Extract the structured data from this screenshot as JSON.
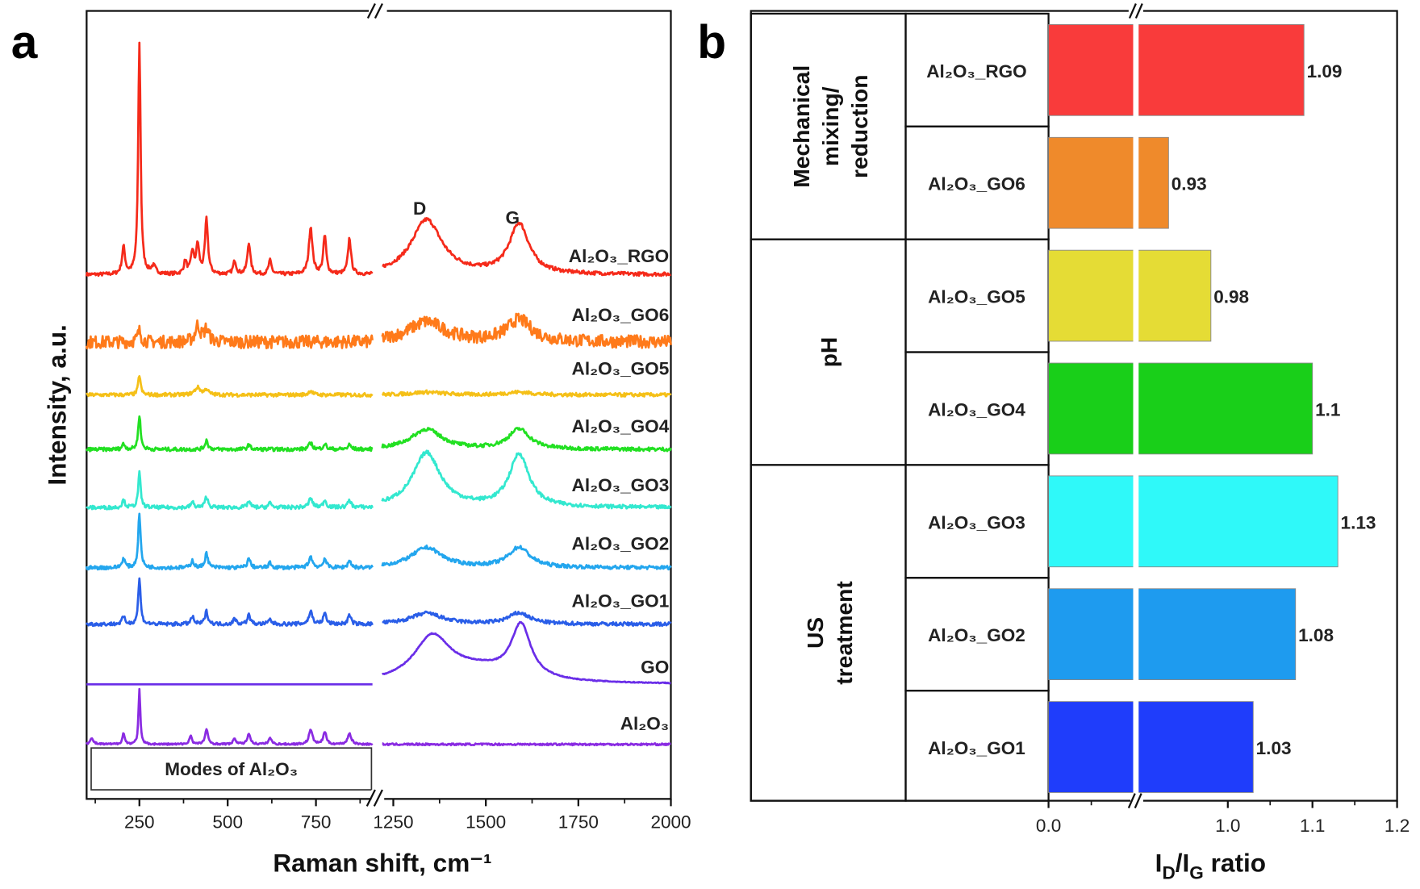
{
  "chart_data": [
    {
      "panel": "a",
      "type": "line",
      "xlabel": "Raman shift, cm⁻¹",
      "ylabel": "Intensity, a.u.",
      "x_segments": [
        [
          100,
          910
        ],
        [
          1220,
          2000
        ]
      ],
      "x_ticks": [
        "250",
        "500",
        "750",
        "1250",
        "1500",
        "1750",
        "2000"
      ],
      "x_tick_values": [
        250,
        500,
        750,
        1250,
        1500,
        1750,
        2000
      ],
      "axis_break": true,
      "grid": false,
      "peak_labels": [
        {
          "text": "D",
          "x": 1340
        },
        {
          "text": "G",
          "x": 1590
        }
      ],
      "box_label": "Modes of Al₂O₃",
      "peak_model": "position cm-1, relative intensity, half-width cm-1",
      "series": [
        {
          "name": "Al₂O₃_RGO",
          "color": "#f52a1a",
          "noise": 2,
          "peaks": [
            [
              205,
              30,
              5
            ],
            [
              250,
              255,
              4
            ],
            [
              290,
              8,
              8
            ],
            [
              380,
              14,
              5
            ],
            [
              400,
              24,
              5
            ],
            [
              415,
              32,
              5
            ],
            [
              440,
              60,
              5
            ],
            [
              520,
              15,
              5
            ],
            [
              560,
              35,
              5
            ],
            [
              620,
              15,
              5
            ],
            [
              735,
              52,
              6
            ],
            [
              775,
              42,
              5
            ],
            [
              845,
              40,
              5
            ],
            [
              1340,
              60,
              50
            ],
            [
              1590,
              55,
              32
            ]
          ]
        },
        {
          "name": "Al₂O₃_GO6",
          "color": "#ff7a1a",
          "noise": 7,
          "peaks": [
            [
              250,
              12,
              6
            ],
            [
              415,
              18,
              8
            ],
            [
              440,
              14,
              8
            ],
            [
              1340,
              22,
              60
            ],
            [
              1590,
              24,
              40
            ]
          ]
        },
        {
          "name": "Al₂O₃_GO5",
          "color": "#f5c018",
          "noise": 2,
          "peaks": [
            [
              250,
              22,
              4
            ],
            [
              415,
              8,
              10
            ],
            [
              440,
              6,
              6
            ],
            [
              735,
              5,
              6
            ],
            [
              1340,
              3,
              50
            ],
            [
              1590,
              3,
              40
            ]
          ]
        },
        {
          "name": "Al₂O₃_GO4",
          "color": "#22e022",
          "noise": 2,
          "peaks": [
            [
              205,
              6,
              5
            ],
            [
              250,
              38,
              4
            ],
            [
              440,
              10,
              5
            ],
            [
              560,
              5,
              5
            ],
            [
              735,
              7,
              6
            ],
            [
              775,
              6,
              5
            ],
            [
              845,
              5,
              5
            ],
            [
              1340,
              22,
              50
            ],
            [
              1590,
              22,
              35
            ]
          ]
        },
        {
          "name": "Al₂O₃_GO3",
          "color": "#33e8cf",
          "noise": 2,
          "peaks": [
            [
              205,
              8,
              5
            ],
            [
              250,
              38,
              4
            ],
            [
              400,
              6,
              5
            ],
            [
              440,
              12,
              5
            ],
            [
              560,
              7,
              5
            ],
            [
              620,
              5,
              5
            ],
            [
              735,
              10,
              6
            ],
            [
              775,
              8,
              5
            ],
            [
              845,
              8,
              5
            ],
            [
              1340,
              60,
              45
            ],
            [
              1590,
              58,
              32
            ]
          ]
        },
        {
          "name": "Al₂O₃_GO2",
          "color": "#23a6ee",
          "noise": 2,
          "peaks": [
            [
              205,
              10,
              5
            ],
            [
              250,
              60,
              4
            ],
            [
              400,
              8,
              5
            ],
            [
              440,
              16,
              5
            ],
            [
              560,
              10,
              5
            ],
            [
              620,
              5,
              5
            ],
            [
              735,
              12,
              6
            ],
            [
              775,
              10,
              5
            ],
            [
              845,
              8,
              5
            ],
            [
              1340,
              22,
              50
            ],
            [
              1590,
              22,
              35
            ]
          ]
        },
        {
          "name": "Al₂O₃_GO1",
          "color": "#2a5ee8",
          "noise": 2,
          "peaks": [
            [
              205,
              8,
              5
            ],
            [
              250,
              50,
              4
            ],
            [
              400,
              8,
              5
            ],
            [
              440,
              14,
              5
            ],
            [
              520,
              6,
              5
            ],
            [
              560,
              10,
              5
            ],
            [
              620,
              5,
              5
            ],
            [
              735,
              14,
              6
            ],
            [
              775,
              12,
              5
            ],
            [
              845,
              10,
              5
            ],
            [
              1340,
              12,
              50
            ],
            [
              1590,
              12,
              35
            ]
          ]
        },
        {
          "name": "GO",
          "color": "#6a2ee8",
          "noise": 0.5,
          "peaks": [
            [
              1355,
              48,
              60
            ],
            [
              1595,
              58,
              32
            ],
            [
              1480,
              14,
              120
            ]
          ]
        },
        {
          "name": "Al₂O₃",
          "color": "#8a2be2",
          "noise": 1,
          "peaks": [
            [
              115,
              6,
              6
            ],
            [
              205,
              12,
              4
            ],
            [
              250,
              60,
              3
            ],
            [
              395,
              10,
              4
            ],
            [
              440,
              16,
              5
            ],
            [
              520,
              6,
              5
            ],
            [
              560,
              12,
              5
            ],
            [
              620,
              7,
              5
            ],
            [
              735,
              16,
              6
            ],
            [
              775,
              14,
              5
            ],
            [
              845,
              12,
              6
            ]
          ]
        }
      ]
    },
    {
      "panel": "b",
      "type": "bar",
      "orientation": "horizontal",
      "xlabel_parts": [
        "I",
        "D",
        "/I",
        "G",
        " ratio"
      ],
      "x_ticks": [
        "0.0",
        "1.0",
        "1.1",
        "1.2"
      ],
      "x_tick_values": [
        0.0,
        1.0,
        1.1,
        1.2
      ],
      "axis_break": [
        0.5,
        0.9
      ],
      "xlim": [
        0,
        1.2
      ],
      "categories": [
        "Al₂O₃_RGO",
        "Al₂O₃_GO6",
        "Al₂O₃_GO5",
        "Al₂O₃_GO4",
        "Al₂O₃_GO3",
        "Al₂O₃_GO2",
        "Al₂O₃_GO1"
      ],
      "values": [
        1.09,
        0.93,
        0.98,
        1.1,
        1.13,
        1.08,
        1.03
      ],
      "value_labels": [
        "1.09",
        "0.93",
        "0.98",
        "1.1",
        "1.13",
        "1.08",
        "1.03"
      ],
      "colors": [
        "#f93b3b",
        "#ef8a2b",
        "#e5dc35",
        "#19cf19",
        "#2ff9f9",
        "#1e9bef",
        "#1f3dfb"
      ],
      "groups": [
        {
          "lines": [
            "Mechanical",
            "mixing/",
            "reduction"
          ],
          "rows": [
            0,
            1
          ]
        },
        {
          "lines": [
            "pH"
          ],
          "rows": [
            2,
            3
          ]
        },
        {
          "lines": [
            "US",
            "treatment"
          ],
          "rows": [
            4,
            5,
            6
          ]
        }
      ]
    }
  ],
  "panel_labels": [
    "a",
    "b"
  ]
}
